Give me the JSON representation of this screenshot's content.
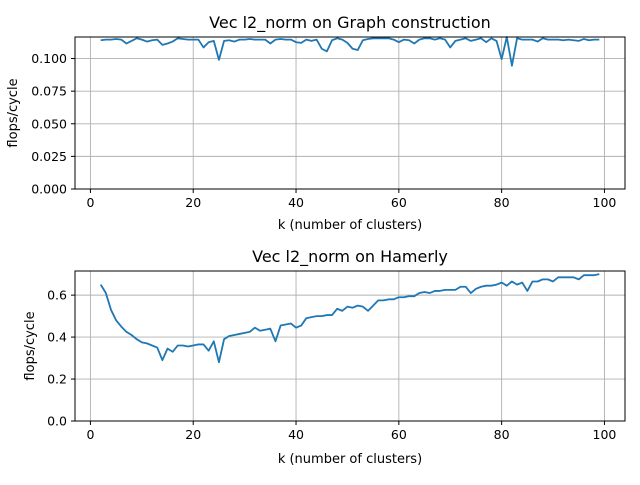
{
  "colors": {
    "series": "#1f77b4"
  },
  "chart_data": [
    {
      "type": "line",
      "title": "Vec l2_norm on Graph construction",
      "xlabel": "k (number of clusters)",
      "ylabel": "flops/cycle",
      "xlim": [
        -3,
        104
      ],
      "ylim": [
        0.0,
        0.1165
      ],
      "grid": true,
      "xticks": [
        0,
        20,
        40,
        60,
        80,
        100
      ],
      "xtick_labels": [
        "0",
        "20",
        "40",
        "60",
        "80",
        "100"
      ],
      "yticks": [
        0.0,
        0.025,
        0.05,
        0.075,
        0.1
      ],
      "ytick_labels": [
        "0.000",
        "0.025",
        "0.050",
        "0.075",
        "0.100"
      ],
      "series": [
        {
          "x": [
            2,
            3,
            4,
            5,
            6,
            7,
            8,
            9,
            10,
            11,
            12,
            13,
            14,
            15,
            16,
            17,
            18,
            19,
            20,
            21,
            22,
            23,
            24,
            25,
            26,
            27,
            28,
            29,
            30,
            31,
            32,
            33,
            34,
            35,
            36,
            37,
            38,
            39,
            40,
            41,
            42,
            43,
            44,
            45,
            46,
            47,
            48,
            49,
            50,
            51,
            52,
            53,
            54,
            55,
            56,
            57,
            58,
            59,
            60,
            61,
            62,
            63,
            64,
            65,
            66,
            67,
            68,
            69,
            70,
            71,
            72,
            73,
            74,
            75,
            76,
            77,
            78,
            79,
            80,
            81,
            82,
            83,
            84,
            85,
            86,
            87,
            88,
            89,
            90,
            91,
            92,
            93,
            94,
            95,
            96,
            97,
            98,
            99
          ],
          "y": [
            0.114,
            0.1145,
            0.1145,
            0.115,
            0.1145,
            0.1115,
            0.1135,
            0.1155,
            0.1145,
            0.113,
            0.114,
            0.1145,
            0.1105,
            0.1115,
            0.113,
            0.1155,
            0.115,
            0.1145,
            0.1145,
            0.1145,
            0.1085,
            0.1125,
            0.1135,
            0.099,
            0.1135,
            0.114,
            0.113,
            0.1145,
            0.1145,
            0.115,
            0.1145,
            0.1145,
            0.1145,
            0.1115,
            0.1145,
            0.115,
            0.1145,
            0.1145,
            0.1125,
            0.112,
            0.1145,
            0.1135,
            0.1145,
            0.1075,
            0.1055,
            0.114,
            0.1155,
            0.1145,
            0.112,
            0.1075,
            0.1065,
            0.114,
            0.115,
            0.1155,
            0.1155,
            0.1155,
            0.1155,
            0.1145,
            0.1125,
            0.1145,
            0.114,
            0.1115,
            0.1145,
            0.1155,
            0.1155,
            0.1145,
            0.1155,
            0.1145,
            0.1085,
            0.1135,
            0.1145,
            0.1155,
            0.1135,
            0.1145,
            0.1155,
            0.1125,
            0.1155,
            0.1135,
            0.0995,
            0.1165,
            0.0945,
            0.1155,
            0.1145,
            0.1145,
            0.1145,
            0.113,
            0.1155,
            0.1145,
            0.1145,
            0.1145,
            0.114,
            0.1145,
            0.114,
            0.1135,
            0.115,
            0.114,
            0.1145,
            0.1145
          ]
        }
      ]
    },
    {
      "type": "line",
      "title": "Vec l2_norm on Hamerly",
      "xlabel": "k (number of clusters)",
      "ylabel": "flops/cycle",
      "xlim": [
        -3,
        104
      ],
      "ylim": [
        0.0,
        0.715
      ],
      "grid": true,
      "xticks": [
        0,
        20,
        40,
        60,
        80,
        100
      ],
      "xtick_labels": [
        "0",
        "20",
        "40",
        "60",
        "80",
        "100"
      ],
      "yticks": [
        0.0,
        0.2,
        0.4,
        0.6
      ],
      "ytick_labels": [
        "0.0",
        "0.2",
        "0.4",
        "0.6"
      ],
      "series": [
        {
          "x": [
            2,
            3,
            4,
            5,
            6,
            7,
            8,
            9,
            10,
            11,
            12,
            13,
            14,
            15,
            16,
            17,
            18,
            19,
            20,
            21,
            22,
            23,
            24,
            25,
            26,
            27,
            28,
            29,
            30,
            31,
            32,
            33,
            34,
            35,
            36,
            37,
            38,
            39,
            40,
            41,
            42,
            43,
            44,
            45,
            46,
            47,
            48,
            49,
            50,
            51,
            52,
            53,
            54,
            55,
            56,
            57,
            58,
            59,
            60,
            61,
            62,
            63,
            64,
            65,
            66,
            67,
            68,
            69,
            70,
            71,
            72,
            73,
            74,
            75,
            76,
            77,
            78,
            79,
            80,
            81,
            82,
            83,
            84,
            85,
            86,
            87,
            88,
            89,
            90,
            91,
            92,
            93,
            94,
            95,
            96,
            97,
            98,
            99
          ],
          "y": [
            0.65,
            0.61,
            0.53,
            0.48,
            0.45,
            0.425,
            0.41,
            0.39,
            0.375,
            0.37,
            0.36,
            0.35,
            0.29,
            0.345,
            0.33,
            0.36,
            0.36,
            0.355,
            0.36,
            0.365,
            0.365,
            0.335,
            0.38,
            0.28,
            0.39,
            0.405,
            0.41,
            0.415,
            0.42,
            0.425,
            0.445,
            0.43,
            0.435,
            0.44,
            0.38,
            0.455,
            0.46,
            0.465,
            0.445,
            0.455,
            0.49,
            0.495,
            0.5,
            0.5,
            0.505,
            0.505,
            0.535,
            0.525,
            0.545,
            0.54,
            0.55,
            0.545,
            0.525,
            0.55,
            0.575,
            0.575,
            0.58,
            0.58,
            0.59,
            0.59,
            0.595,
            0.595,
            0.61,
            0.615,
            0.61,
            0.62,
            0.62,
            0.625,
            0.625,
            0.625,
            0.64,
            0.64,
            0.61,
            0.63,
            0.64,
            0.645,
            0.645,
            0.65,
            0.66,
            0.645,
            0.665,
            0.65,
            0.66,
            0.62,
            0.665,
            0.665,
            0.675,
            0.675,
            0.665,
            0.685,
            0.685,
            0.685,
            0.685,
            0.675,
            0.695,
            0.695,
            0.695,
            0.7
          ]
        }
      ]
    }
  ]
}
